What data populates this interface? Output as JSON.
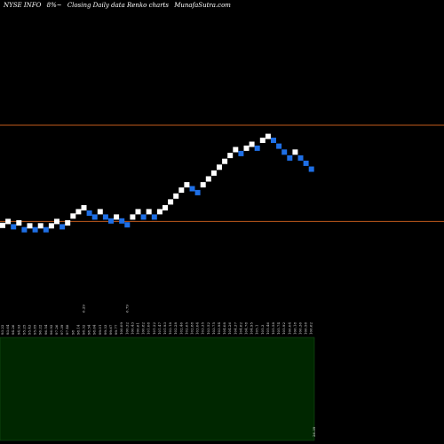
{
  "header": {
    "ticker": "NYSE INFO",
    "change": "8%~",
    "description": "Closing Daily data Renko charts",
    "source": "MunafaSutra.com"
  },
  "colors": {
    "up_brick": "#ffffff",
    "down_brick": "#1e6fe6",
    "level_line": "#c15a1c",
    "volume_panel": "#002700",
    "volume_border": "#1a5a1a"
  },
  "chart_data": {
    "type": "renko",
    "y_range": [
      70,
      130
    ],
    "levels": [
      108,
      88.3
    ],
    "bricks": [
      {
        "d": "up",
        "v": 87.5
      },
      {
        "d": "up",
        "v": 88.3
      },
      {
        "d": "down",
        "v": 87.2
      },
      {
        "d": "up",
        "v": 88
      },
      {
        "d": "down",
        "v": 86.6
      },
      {
        "d": "up",
        "v": 87.4
      },
      {
        "d": "down",
        "v": 86.6
      },
      {
        "d": "up",
        "v": 87.4
      },
      {
        "d": "down",
        "v": 86.6
      },
      {
        "d": "up",
        "v": 87.4
      },
      {
        "d": "up",
        "v": 88.3
      },
      {
        "d": "down",
        "v": 87.2
      },
      {
        "d": "up",
        "v": 88
      },
      {
        "d": "up",
        "v": 89.4
      },
      {
        "d": "up",
        "v": 90.3
      },
      {
        "d": "up",
        "v": 91.1
      },
      {
        "d": "down",
        "v": 90
      },
      {
        "d": "down",
        "v": 89.2
      },
      {
        "d": "up",
        "v": 90.3
      },
      {
        "d": "down",
        "v": 89.2
      },
      {
        "d": "down",
        "v": 88.4
      },
      {
        "d": "up",
        "v": 89.2
      },
      {
        "d": "down",
        "v": 88.4
      },
      {
        "d": "down",
        "v": 87.6
      },
      {
        "d": "up",
        "v": 89.2
      },
      {
        "d": "up",
        "v": 90.3
      },
      {
        "d": "down",
        "v": 89.2
      },
      {
        "d": "up",
        "v": 90.3
      },
      {
        "d": "down",
        "v": 89.2
      },
      {
        "d": "up",
        "v": 90.3
      },
      {
        "d": "up",
        "v": 91.1
      },
      {
        "d": "up",
        "v": 92.3
      },
      {
        "d": "up",
        "v": 93.5
      },
      {
        "d": "up",
        "v": 94.7
      },
      {
        "d": "up",
        "v": 95.8
      },
      {
        "d": "down",
        "v": 95
      },
      {
        "d": "down",
        "v": 94.2
      },
      {
        "d": "up",
        "v": 95.8
      },
      {
        "d": "up",
        "v": 97
      },
      {
        "d": "up",
        "v": 98.2
      },
      {
        "d": "up",
        "v": 99.4
      },
      {
        "d": "up",
        "v": 100.6
      },
      {
        "d": "up",
        "v": 101.8
      },
      {
        "d": "up",
        "v": 103
      },
      {
        "d": "down",
        "v": 102.2
      },
      {
        "d": "up",
        "v": 103.3
      },
      {
        "d": "up",
        "v": 104.1
      },
      {
        "d": "down",
        "v": 103.3
      },
      {
        "d": "up",
        "v": 104.9
      },
      {
        "d": "up",
        "v": 105.7
      },
      {
        "d": "down",
        "v": 104.9
      },
      {
        "d": "down",
        "v": 103.7
      },
      {
        "d": "down",
        "v": 102.5
      },
      {
        "d": "down",
        "v": 101.3
      },
      {
        "d": "up",
        "v": 102.5
      },
      {
        "d": "down",
        "v": 101.3
      },
      {
        "d": "down",
        "v": 100.2
      },
      {
        "d": "down",
        "v": 99
      }
    ],
    "x_labels": [
      "93.22",
      "93.64",
      "94.26",
      "94.93",
      "95.25",
      "95.43",
      "95.85",
      "96.22",
      "96.54",
      "96.92",
      "97.26",
      "97.39",
      "97.48",
      "98",
      "98.14",
      "98.32",
      "98.54",
      "98.64",
      "99.01",
      "99.33",
      "99.67",
      "99.77",
      "100.09",
      "100.32",
      "100.43",
      "100.61",
      "100.82",
      "101.08",
      "101.22",
      "101.47",
      "101.93",
      "102.18",
      "102.28",
      "102.46",
      "102.65",
      "102.88",
      "103.04",
      "103.35",
      "103.52",
      "103.75",
      "103.94",
      "104.08",
      "104.26",
      "104.37",
      "104.62",
      "104.78",
      "104.95",
      "105.1",
      "105.3",
      "105.46",
      "105.58",
      "105.74",
      "105.92",
      "106.04",
      "106.18",
      "106.36",
      "106.58",
      "106.62"
    ],
    "annotations": [
      {
        "index": 15,
        "text": "6.29"
      },
      {
        "index": 23,
        "text": "6.79"
      }
    ],
    "volume_label": "26.39"
  }
}
